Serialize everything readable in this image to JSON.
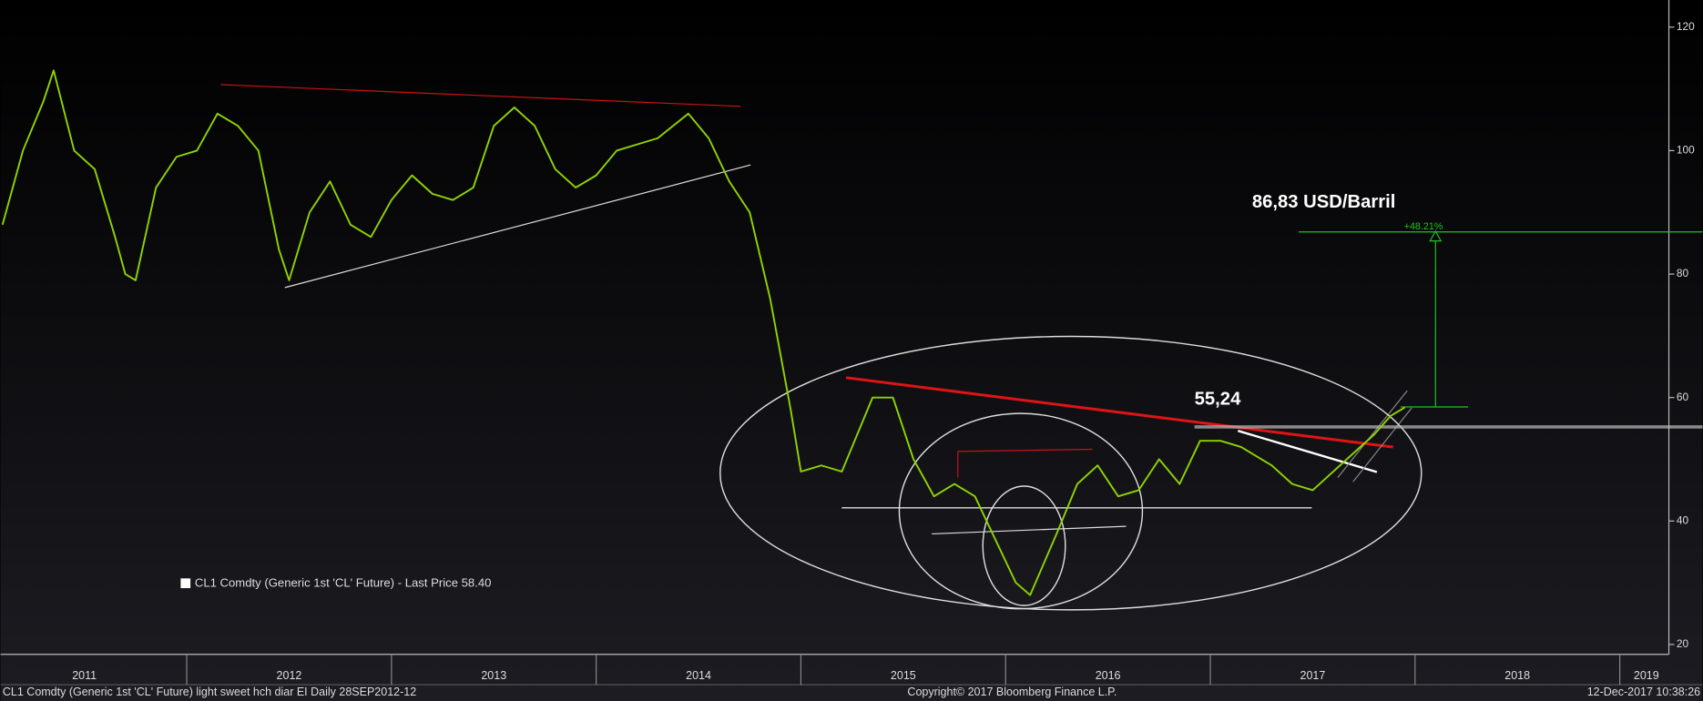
{
  "chart_data": {
    "type": "line",
    "x": [
      2011.1,
      2011.2,
      2011.3,
      2011.35,
      2011.45,
      2011.55,
      2011.65,
      2011.7,
      2011.75,
      2011.85,
      2011.95,
      2012.05,
      2012.15,
      2012.25,
      2012.35,
      2012.45,
      2012.5,
      2012.6,
      2012.7,
      2012.8,
      2012.9,
      2013.0,
      2013.1,
      2013.2,
      2013.3,
      2013.4,
      2013.5,
      2013.6,
      2013.7,
      2013.8,
      2013.9,
      2014.0,
      2014.1,
      2014.2,
      2014.3,
      2014.45,
      2014.55,
      2014.65,
      2014.75,
      2014.85,
      2014.95,
      2015.0,
      2015.1,
      2015.2,
      2015.35,
      2015.45,
      2015.55,
      2015.65,
      2015.75,
      2015.85,
      2015.95,
      2016.05,
      2016.12,
      2016.25,
      2016.35,
      2016.45,
      2016.55,
      2016.65,
      2016.75,
      2016.85,
      2016.95,
      2017.05,
      2017.15,
      2017.3,
      2017.4,
      2017.5,
      2017.6,
      2017.7,
      2017.8,
      2017.88,
      2017.95
    ],
    "series": [
      {
        "name": "CL1 Comdty (Generic 1st 'CL' Future) - Last Price 58.40",
        "color": "#8fd400",
        "values": [
          88,
          100,
          108,
          113,
          100,
          97,
          86,
          80,
          79,
          94,
          99,
          100,
          106,
          104,
          100,
          84,
          79,
          90,
          95,
          88,
          86,
          92,
          96,
          93,
          92,
          94,
          104,
          107,
          104,
          97,
          94,
          96,
          100,
          101,
          102,
          106,
          102,
          95,
          90,
          76,
          58,
          48,
          49,
          48,
          60,
          60,
          50,
          44,
          46,
          44,
          37,
          30,
          28,
          38,
          46,
          49,
          44,
          45,
          50,
          46,
          53,
          53,
          52,
          49,
          46,
          45,
          48,
          51,
          54,
          57,
          58.4
        ]
      }
    ],
    "xlim": [
      2011.09,
      2019.24
    ],
    "ylim": [
      18.4,
      124.4
    ],
    "yticks": [
      20,
      40,
      60,
      80,
      100,
      120
    ],
    "xticks": [
      {
        "value": 2011.5,
        "label": "2011"
      },
      {
        "value": 2012.5,
        "label": "2012"
      },
      {
        "value": 2013.5,
        "label": "2013"
      },
      {
        "value": 2014.5,
        "label": "2014"
      },
      {
        "value": 2015.5,
        "label": "2015"
      },
      {
        "value": 2016.5,
        "label": "2016"
      },
      {
        "value": 2017.5,
        "label": "2017"
      },
      {
        "value": 2018.5,
        "label": "2018"
      },
      {
        "value": 2019.13,
        "label": "2019"
      }
    ],
    "xdividers": [
      2012,
      2013,
      2014,
      2015,
      2016,
      2017,
      2018,
      2019
    ],
    "levels": [
      {
        "value": 86.83,
        "label": "86,83 USD/Barril",
        "color": "#22c022"
      },
      {
        "value": 55.24,
        "label": "55,24",
        "color": "#bbbbbb"
      }
    ],
    "annotations": [
      {
        "text": "+48.21%"
      }
    ],
    "footer": {
      "left": "CL1 Comdty (Generic 1st 'CL' Future) light sweet hch diar EI  Daily 28SEP2012-12",
      "center": "Copyright© 2017 Bloomberg Finance L.P.",
      "right": "12-Dec-2017 10:38:26"
    }
  }
}
